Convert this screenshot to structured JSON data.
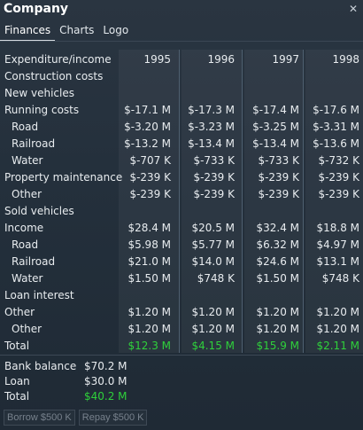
{
  "window": {
    "title": "Company",
    "close_icon": "close-icon"
  },
  "tabs": [
    {
      "label": "Finances",
      "active": true
    },
    {
      "label": "Charts",
      "active": false
    },
    {
      "label": "Logo",
      "active": false
    }
  ],
  "table": {
    "header_label": "Expenditure/income",
    "years": [
      "1995",
      "1996",
      "1997",
      "1998"
    ],
    "rows": [
      {
        "label": "Construction costs",
        "indent": false,
        "values": [
          "",
          "",
          "",
          ""
        ]
      },
      {
        "label": "New vehicles",
        "indent": false,
        "values": [
          "",
          "",
          "",
          ""
        ]
      },
      {
        "label": "Running costs",
        "indent": false,
        "values": [
          "$-17.1 M",
          "$-17.3 M",
          "$-17.4 M",
          "$-17.6 M"
        ]
      },
      {
        "label": "Road",
        "indent": true,
        "values": [
          "$-3.20 M",
          "$-3.23 M",
          "$-3.25 M",
          "$-3.31 M"
        ]
      },
      {
        "label": "Railroad",
        "indent": true,
        "values": [
          "$-13.2 M",
          "$-13.4 M",
          "$-13.4 M",
          "$-13.6 M"
        ]
      },
      {
        "label": "Water",
        "indent": true,
        "values": [
          "$-707 K",
          "$-733 K",
          "$-733 K",
          "$-732 K"
        ]
      },
      {
        "label": "Property maintenance",
        "indent": false,
        "values": [
          "$-239 K",
          "$-239 K",
          "$-239 K",
          "$-239 K"
        ]
      },
      {
        "label": "Other",
        "indent": true,
        "values": [
          "$-239 K",
          "$-239 K",
          "$-239 K",
          "$-239 K"
        ]
      },
      {
        "label": "Sold vehicles",
        "indent": false,
        "values": [
          "",
          "",
          "",
          ""
        ]
      },
      {
        "label": "Income",
        "indent": false,
        "values": [
          "$28.4 M",
          "$20.5 M",
          "$32.4 M",
          "$18.8 M"
        ]
      },
      {
        "label": "Road",
        "indent": true,
        "values": [
          "$5.98 M",
          "$5.77 M",
          "$6.32 M",
          "$4.97 M"
        ]
      },
      {
        "label": "Railroad",
        "indent": true,
        "values": [
          "$21.0 M",
          "$14.0 M",
          "$24.6 M",
          "$13.1 M"
        ]
      },
      {
        "label": "Water",
        "indent": true,
        "values": [
          "$1.50 M",
          "$748 K",
          "$1.50 M",
          "$748 K"
        ]
      },
      {
        "label": "Loan interest",
        "indent": false,
        "values": [
          "",
          "",
          "",
          ""
        ]
      },
      {
        "label": "Other",
        "indent": false,
        "values": [
          "$1.20 M",
          "$1.20 M",
          "$1.20 M",
          "$1.20 M"
        ]
      },
      {
        "label": "Other",
        "indent": true,
        "values": [
          "$1.20 M",
          "$1.20 M",
          "$1.20 M",
          "$1.20 M"
        ]
      },
      {
        "label": "Total",
        "indent": false,
        "values": [
          "$12.3 M",
          "$4.15 M",
          "$15.9 M",
          "$2.11 M"
        ],
        "total": true
      }
    ]
  },
  "summary": {
    "bank_balance_label": "Bank balance",
    "bank_balance_value": "$70.2 M",
    "loan_label": "Loan",
    "loan_value": "$30.0 M",
    "total_label": "Total",
    "total_value": "$40.2 M"
  },
  "buttons": {
    "borrow_label": "Borrow $500 K",
    "repay_label": "Repay $500 K"
  },
  "colors": {
    "positive": "#2fd03b",
    "text": "#e8ecef",
    "disabled": "#77818c"
  }
}
